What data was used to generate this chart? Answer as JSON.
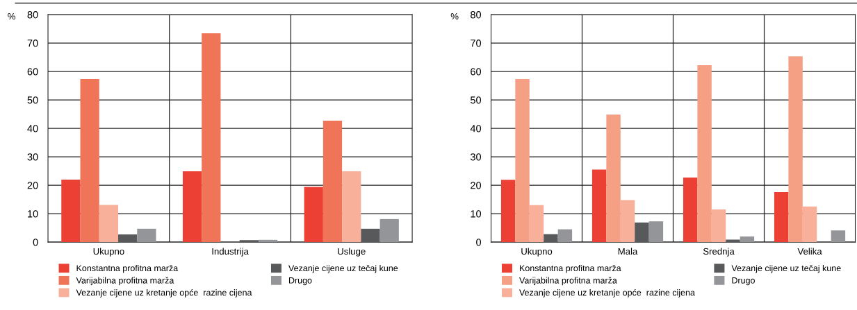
{
  "chart_data": [
    {
      "type": "bar",
      "ylabel": "%",
      "categories": [
        "Ukupno",
        "Industrija",
        "Usluge"
      ],
      "ylim": [
        0,
        80
      ],
      "yticks": [
        0,
        10,
        20,
        30,
        40,
        50,
        60,
        70,
        80
      ],
      "grid": true,
      "legend": "bottom",
      "series": [
        {
          "name": "Konstantna profitna marža",
          "color": "#ed4035",
          "values": [
            22.0,
            24.9,
            19.4
          ]
        },
        {
          "name": "Varijabilna profitna marža",
          "color": "#f07458",
          "values": [
            57.3,
            73.4,
            42.7
          ]
        },
        {
          "name": "Vezanje cijene uz kretanje opće  razine cijena",
          "color": "#f8b09a",
          "values": [
            13.1,
            0,
            24.9
          ]
        },
        {
          "name": "Vezanje cijene uz tečaj kune",
          "color": "#58595b",
          "values": [
            2.7,
            0.7,
            4.7
          ]
        },
        {
          "name": "Drugo",
          "color": "#939598",
          "values": [
            4.7,
            0.8,
            8.1
          ]
        }
      ]
    },
    {
      "type": "bar",
      "ylabel": "%",
      "categories": [
        "Ukupno",
        "Mala",
        "Srednja",
        "Velika"
      ],
      "ylim": [
        0,
        80
      ],
      "yticks": [
        0,
        10,
        20,
        30,
        40,
        50,
        60,
        70,
        80
      ],
      "grid": true,
      "legend": "bottom",
      "series": [
        {
          "name": "Konstantna profitna marža",
          "color": "#ed4035",
          "values": [
            21.9,
            25.5,
            22.7,
            17.6
          ]
        },
        {
          "name": "Varijabilna profitna marža",
          "color": "#f5a085",
          "values": [
            57.3,
            44.8,
            62.2,
            65.3
          ]
        },
        {
          "name": "Vezanje cijene uz kretanje opće  razine cijena",
          "color": "#f8b09a",
          "values": [
            13.0,
            14.8,
            11.5,
            12.5
          ]
        },
        {
          "name": "Vezanje cijene uz tečaj kune",
          "color": "#58595b",
          "values": [
            2.8,
            6.9,
            0.9,
            0
          ]
        },
        {
          "name": "Drugo",
          "color": "#939598",
          "values": [
            4.5,
            7.3,
            2.0,
            4.1
          ]
        }
      ]
    }
  ]
}
